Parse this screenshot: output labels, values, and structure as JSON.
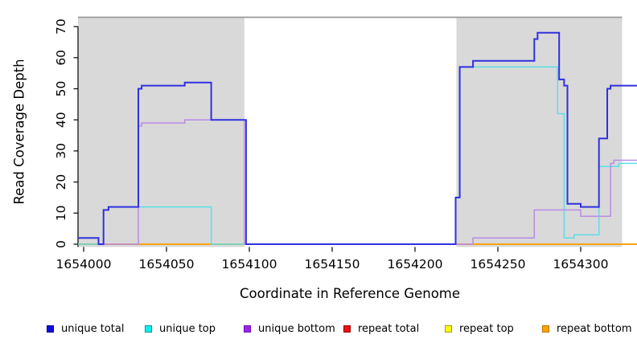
{
  "figure": {
    "background": "#ffffff"
  },
  "axes": {
    "xlabel": "Coordinate in Reference Genome",
    "ylabel": "Read Coverage Depth"
  },
  "chart_data": {
    "type": "line",
    "subtype": "step-coverage",
    "title": "",
    "xlabel": "Coordinate in Reference Genome",
    "ylabel": "Read Coverage Depth",
    "xlim": [
      1653996.6,
      1654334.1
    ],
    "ylim": [
      -1.0,
      73.1
    ],
    "grid": false,
    "legend_position": "bottom",
    "x_ticks": [
      1654000,
      1654050,
      1654100,
      1654150,
      1654200,
      1654250,
      1654300
    ],
    "x_tick_labels": [
      "1654000",
      "1654050",
      "1654100",
      "1654150",
      "1654200",
      "1654250",
      "1654300"
    ],
    "y_ticks": [
      0,
      10,
      20,
      30,
      40,
      50,
      60,
      70
    ],
    "y_tick_labels": [
      "0",
      "10",
      "20",
      "30",
      "40",
      "50",
      "60",
      "70"
    ],
    "shaded_regions": [
      {
        "x1": 1653996.6,
        "x2": 1654097,
        "color": "#d9d9d9"
      },
      {
        "x1": 1654225,
        "x2": 1654325,
        "color": "#d9d9d9"
      }
    ],
    "top_boundary_line": {
      "y": 73,
      "x1": 1653996.6,
      "x2": 1654325,
      "color": "#9a9a9a"
    },
    "series": [
      {
        "name": "repeat top",
        "color": "#f2f20a",
        "width": 1.2,
        "steps": [
          [
            1653996.6,
            0
          ],
          [
            1654334.1,
            0
          ]
        ]
      },
      {
        "name": "repeat total",
        "color": "#cc2244",
        "width": 1.2,
        "steps": [
          [
            1653996.6,
            0
          ],
          [
            1654334.1,
            0
          ]
        ]
      },
      {
        "name": "repeat bottom",
        "color": "#ffa200",
        "width": 1.8,
        "steps": [
          [
            1653996.6,
            0
          ],
          [
            1654334.1,
            0
          ]
        ]
      },
      {
        "name": "unique top",
        "color": "#5cdee6",
        "width": 1.5,
        "steps": [
          [
            1653996.6,
            0
          ],
          [
            1654012,
            11
          ],
          [
            1654015,
            12
          ],
          [
            1654077,
            0
          ],
          [
            1654224.5,
            15
          ],
          [
            1654227,
            57
          ],
          [
            1654286,
            42
          ],
          [
            1654290,
            2
          ],
          [
            1654296,
            3
          ],
          [
            1654311,
            25
          ],
          [
            1654323,
            26
          ],
          [
            1654334.1,
            26
          ]
        ]
      },
      {
        "name": "unique bottom",
        "color": "#b78ce6",
        "width": 1.5,
        "steps": [
          [
            1653996.6,
            2
          ],
          [
            1654009,
            0
          ],
          [
            1654033,
            38
          ],
          [
            1654035,
            39
          ],
          [
            1654061,
            40
          ],
          [
            1654097,
            0
          ],
          [
            1654235,
            2
          ],
          [
            1654272,
            11
          ],
          [
            1654300,
            9
          ],
          [
            1654318,
            26
          ],
          [
            1654320,
            27
          ],
          [
            1654334.1,
            27
          ]
        ]
      },
      {
        "name": "unique total",
        "color": "#3030e0",
        "width": 2.0,
        "steps": [
          [
            1653996.6,
            2
          ],
          [
            1654009,
            0
          ],
          [
            1654012,
            11
          ],
          [
            1654015,
            12
          ],
          [
            1654033,
            50
          ],
          [
            1654035,
            51
          ],
          [
            1654061,
            52
          ],
          [
            1654077,
            40
          ],
          [
            1654098,
            0
          ],
          [
            1654224.5,
            15
          ],
          [
            1654227,
            57
          ],
          [
            1654235,
            59
          ],
          [
            1654272,
            66
          ],
          [
            1654274,
            68
          ],
          [
            1654287,
            53
          ],
          [
            1654290,
            51
          ],
          [
            1654292,
            13
          ],
          [
            1654300,
            12
          ],
          [
            1654311,
            34
          ],
          [
            1654316,
            50
          ],
          [
            1654318,
            51
          ],
          [
            1654334.1,
            51
          ]
        ]
      }
    ]
  },
  "legend": {
    "items": [
      {
        "label": "unique total",
        "fill": "#0a0ae8",
        "border": "#000090"
      },
      {
        "label": "unique top",
        "fill": "#00f2f2",
        "border": "#009898"
      },
      {
        "label": "unique bottom",
        "fill": "#a020f0",
        "border": "#6a14a8"
      },
      {
        "label": "repeat total",
        "fill": "#ee1111",
        "border": "#990000"
      },
      {
        "label": "repeat top",
        "fill": "#ffff00",
        "border": "#a0a000"
      },
      {
        "label": "repeat bottom",
        "fill": "#ffa500",
        "border": "#b87400"
      }
    ]
  }
}
